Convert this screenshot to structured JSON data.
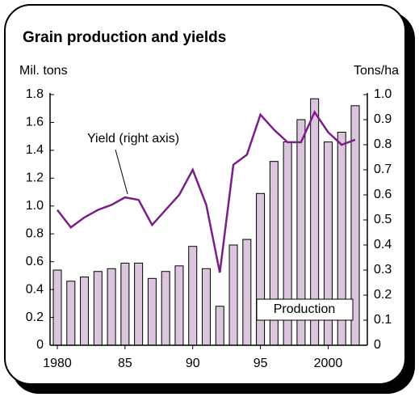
{
  "chart_data": {
    "type": "bar",
    "title": "Grain production and yields",
    "y_label": "Mil. tons",
    "y2_label": "Tons/ha",
    "categories": [
      "1980",
      null,
      null,
      null,
      null,
      "85",
      null,
      null,
      null,
      null,
      "90",
      null,
      null,
      null,
      null,
      "95",
      null,
      null,
      null,
      null,
      "2000",
      null,
      null
    ],
    "series": [
      {
        "name": "Production",
        "type": "bar",
        "color": "#dcc6de",
        "values": [
          0.54,
          0.46,
          0.49,
          0.53,
          0.55,
          0.59,
          0.59,
          0.48,
          0.53,
          0.57,
          0.71,
          0.55,
          0.28,
          0.72,
          0.76,
          1.09,
          1.32,
          1.46,
          1.62,
          1.77,
          1.46,
          1.53,
          1.72
        ]
      },
      {
        "name": "Yield (right axis)",
        "type": "line",
        "axis": "y2",
        "color": "#7a1f86",
        "values": [
          0.54,
          0.47,
          0.51,
          0.54,
          0.56,
          0.59,
          0.58,
          0.48,
          0.54,
          0.6,
          0.7,
          0.56,
          0.29,
          0.72,
          0.76,
          0.92,
          0.86,
          0.81,
          0.81,
          0.93,
          0.85,
          0.8,
          0.82
        ]
      }
    ],
    "ylim": [
      0,
      1.8
    ],
    "yticks": [
      0,
      0.2,
      0.4,
      0.6,
      0.8,
      {
        "value": 1,
        "label": "1.0"
      },
      1.2,
      1.4,
      1.6,
      1.8
    ],
    "y2lim": [
      0,
      1
    ],
    "y2ticks": [
      0,
      0.1,
      0.2,
      0.3,
      0.4,
      0.5,
      0.6,
      0.7,
      0.8,
      0.9,
      {
        "value": 1,
        "label": "1.0"
      }
    ],
    "grid": false
  }
}
